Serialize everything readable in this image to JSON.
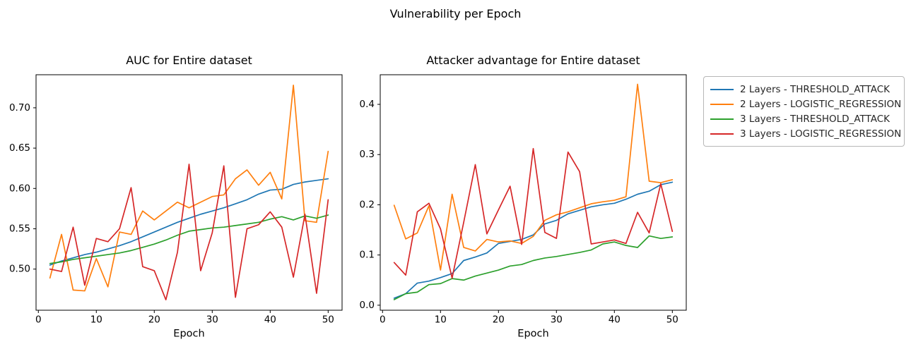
{
  "figure": {
    "suptitle": "Vulnerability per Epoch"
  },
  "colors": {
    "blue": "#1f77b4",
    "orange": "#ff7f0e",
    "green": "#2ca02c",
    "red": "#d62728",
    "spine": "#000000"
  },
  "legend": {
    "items": [
      {
        "label": "2 Layers - THRESHOLD_ATTACK",
        "color": "#1f77b4"
      },
      {
        "label": "2 Layers - LOGISTIC_REGRESSION",
        "color": "#ff7f0e"
      },
      {
        "label": "3 Layers - THRESHOLD_ATTACK",
        "color": "#2ca02c"
      },
      {
        "label": "3 Layers - LOGISTIC_REGRESSION",
        "color": "#d62728"
      }
    ]
  },
  "chart_data": [
    {
      "type": "line",
      "title": "AUC for Entire dataset",
      "xlabel": "Epoch",
      "x": [
        2,
        4,
        6,
        8,
        10,
        12,
        14,
        16,
        18,
        20,
        22,
        24,
        26,
        28,
        30,
        32,
        34,
        36,
        38,
        40,
        42,
        44,
        46,
        48,
        50
      ],
      "xlim": [
        -0.4,
        52.4
      ],
      "ylim": [
        0.449,
        0.741
      ],
      "xticks": [
        0,
        10,
        20,
        30,
        40,
        50
      ],
      "xtick_labels": [
        "0",
        "10",
        "20",
        "30",
        "40",
        "50"
      ],
      "yticks": [
        0.5,
        0.55,
        0.6,
        0.65,
        0.7
      ],
      "ytick_labels": [
        "0.50",
        "0.55",
        "0.60",
        "0.65",
        "0.70"
      ],
      "grid": false,
      "series": [
        {
          "name": "2 Layers - THRESHOLD_ATTACK",
          "color": "#1f77b4",
          "values": [
            0.505,
            0.51,
            0.514,
            0.518,
            0.521,
            0.525,
            0.529,
            0.534,
            0.54,
            0.546,
            0.552,
            0.558,
            0.563,
            0.568,
            0.572,
            0.576,
            0.581,
            0.586,
            0.593,
            0.598,
            0.599,
            0.605,
            0.608,
            0.61,
            0.612
          ]
        },
        {
          "name": "2 Layers - LOGISTIC_REGRESSION",
          "color": "#ff7f0e",
          "values": [
            0.489,
            0.543,
            0.474,
            0.473,
            0.513,
            0.478,
            0.546,
            0.543,
            0.572,
            0.561,
            0.572,
            0.583,
            0.576,
            0.583,
            0.59,
            0.592,
            0.612,
            0.623,
            0.604,
            0.62,
            0.587,
            0.728,
            0.56,
            0.558,
            0.646
          ]
        },
        {
          "name": "3 Layers - THRESHOLD_ATTACK",
          "color": "#2ca02c",
          "values": [
            0.507,
            0.509,
            0.512,
            0.514,
            0.516,
            0.518,
            0.52,
            0.523,
            0.527,
            0.531,
            0.536,
            0.542,
            0.547,
            0.549,
            0.551,
            0.552,
            0.554,
            0.556,
            0.558,
            0.562,
            0.565,
            0.561,
            0.566,
            0.563,
            0.567
          ]
        },
        {
          "name": "3 Layers - LOGISTIC_REGRESSION",
          "color": "#d62728",
          "values": [
            0.5,
            0.497,
            0.552,
            0.48,
            0.538,
            0.534,
            0.55,
            0.601,
            0.503,
            0.498,
            0.462,
            0.521,
            0.63,
            0.498,
            0.545,
            0.628,
            0.465,
            0.55,
            0.555,
            0.571,
            0.552,
            0.49,
            0.568,
            0.47,
            0.586
          ]
        }
      ]
    },
    {
      "type": "line",
      "title": "Attacker advantage for Entire dataset",
      "xlabel": "Epoch",
      "x": [
        2,
        4,
        6,
        8,
        10,
        12,
        14,
        16,
        18,
        20,
        22,
        24,
        26,
        28,
        30,
        32,
        34,
        36,
        38,
        40,
        42,
        44,
        46,
        48,
        50
      ],
      "xlim": [
        -0.4,
        52.4
      ],
      "ylim": [
        -0.01,
        0.459
      ],
      "xticks": [
        0,
        10,
        20,
        30,
        40,
        50
      ],
      "xtick_labels": [
        "0",
        "10",
        "20",
        "30",
        "40",
        "50"
      ],
      "yticks": [
        0.0,
        0.1,
        0.2,
        0.3,
        0.4
      ],
      "ytick_labels": [
        "0.0",
        "0.1",
        "0.2",
        "0.3",
        "0.4"
      ],
      "grid": false,
      "series": [
        {
          "name": "2 Layers - THRESHOLD_ATTACK",
          "color": "#1f77b4",
          "values": [
            0.014,
            0.023,
            0.044,
            0.048,
            0.055,
            0.063,
            0.089,
            0.096,
            0.104,
            0.123,
            0.127,
            0.131,
            0.14,
            0.162,
            0.169,
            0.182,
            0.189,
            0.196,
            0.2,
            0.203,
            0.211,
            0.221,
            0.227,
            0.24,
            0.245
          ]
        },
        {
          "name": "2 Layers - LOGISTIC_REGRESSION",
          "color": "#ff7f0e",
          "values": [
            0.199,
            0.132,
            0.144,
            0.198,
            0.07,
            0.221,
            0.115,
            0.108,
            0.131,
            0.126,
            0.128,
            0.123,
            0.137,
            0.169,
            0.18,
            0.186,
            0.194,
            0.202,
            0.206,
            0.209,
            0.216,
            0.44,
            0.247,
            0.244,
            0.25
          ]
        },
        {
          "name": "3 Layers - THRESHOLD_ATTACK",
          "color": "#2ca02c",
          "values": [
            0.011,
            0.023,
            0.026,
            0.041,
            0.043,
            0.053,
            0.05,
            0.058,
            0.064,
            0.07,
            0.078,
            0.081,
            0.089,
            0.094,
            0.097,
            0.101,
            0.105,
            0.11,
            0.122,
            0.126,
            0.119,
            0.115,
            0.138,
            0.133,
            0.136
          ]
        },
        {
          "name": "3 Layers - LOGISTIC_REGRESSION",
          "color": "#d62728",
          "values": [
            0.085,
            0.06,
            0.186,
            0.203,
            0.152,
            0.054,
            0.165,
            0.28,
            0.142,
            0.19,
            0.237,
            0.121,
            0.312,
            0.145,
            0.133,
            0.305,
            0.266,
            0.122,
            0.126,
            0.13,
            0.123,
            0.185,
            0.144,
            0.242,
            0.147
          ]
        }
      ]
    }
  ]
}
